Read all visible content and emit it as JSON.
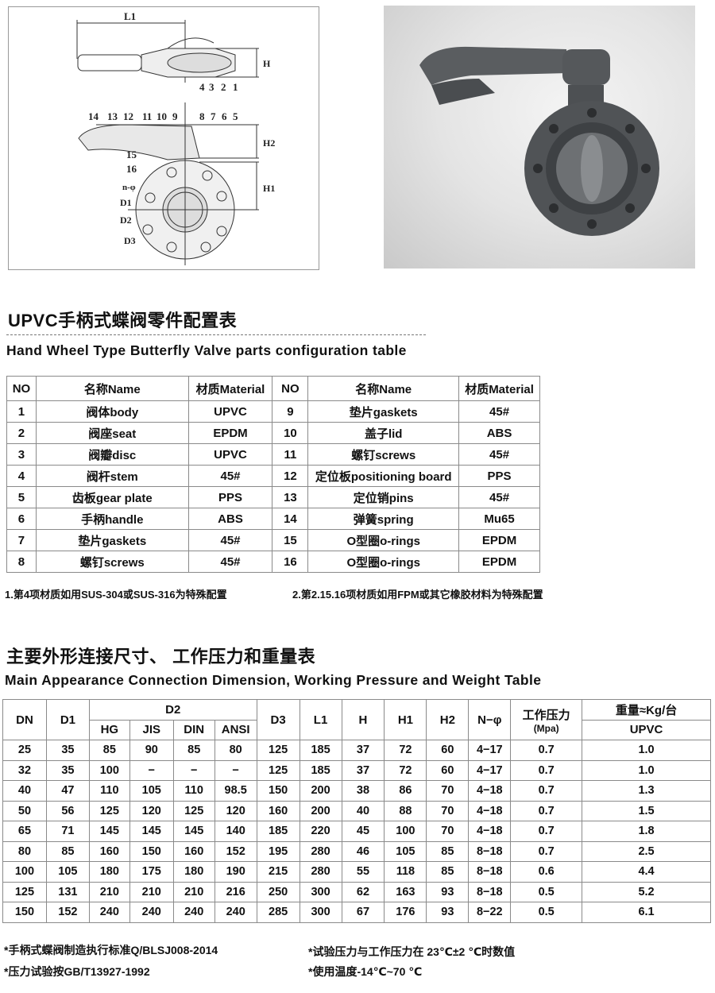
{
  "drawing": {
    "labels": [
      "L1",
      "H",
      "H2",
      "H1",
      "D1",
      "D2",
      "D3",
      "n-φ"
    ],
    "part_numbers_top": [
      "4",
      "3",
      "2",
      "1"
    ],
    "part_numbers_bottom": [
      "14",
      "13",
      "12",
      "11",
      "10",
      "9",
      "8",
      "7",
      "6",
      "5",
      "15",
      "16"
    ]
  },
  "parts_section": {
    "title_cn": "UPVC手柄式蝶阀零件配置表",
    "title_en": "Hand Wheel Type Butterfly Valve parts configuration table",
    "headers": [
      "NO",
      "名称Name",
      "材质Material",
      "NO",
      "名称Name",
      "材质Material"
    ],
    "rows": [
      [
        "1",
        "阀体body",
        "UPVC",
        "9",
        "垫片gaskets",
        "45#"
      ],
      [
        "2",
        "阀座seat",
        "EPDM",
        "10",
        "盖子lid",
        "ABS"
      ],
      [
        "3",
        "阀瓣disc",
        "UPVC",
        "11",
        "螺钉screws",
        "45#"
      ],
      [
        "4",
        "阀杆stem",
        "45#",
        "12",
        "定位板positioning board",
        "PPS"
      ],
      [
        "5",
        "齿板gear plate",
        "PPS",
        "13",
        "定位销pins",
        "45#"
      ],
      [
        "6",
        "手柄handle",
        "ABS",
        "14",
        "弹簧spring",
        "Mu65"
      ],
      [
        "7",
        "垫片gaskets",
        "45#",
        "15",
        "O型圈o-rings",
        "EPDM"
      ],
      [
        "8",
        "螺钉screws",
        "45#",
        "16",
        "O型圈o-rings",
        "EPDM"
      ]
    ],
    "note1": "1.第4项材质如用SUS-304或SUS-316为特殊配置",
    "note2": "2.第2.15.16项材质如用FPM或其它橡胶材料为特殊配置"
  },
  "dims_section": {
    "title_cn": "主要外形连接尺寸、 工作压力和重量表",
    "title_en": "Main Appearance Connection Dimension, Working Pressure and Weight Table",
    "headers": {
      "DN": "DN",
      "D1": "D1",
      "D2": "D2",
      "HG": "HG",
      "JIS": "JIS",
      "DIN": "DIN",
      "ANSI": "ANSI",
      "D3": "D3",
      "L1": "L1",
      "H": "H",
      "H1": "H1",
      "H2": "H2",
      "N": "N−φ",
      "pressure": "工作压力",
      "pressure_unit": "(Mpa)",
      "weight": "重量≈Kg/台",
      "UPVC": "UPVC"
    },
    "rows": [
      [
        "25",
        "35",
        "85",
        "90",
        "85",
        "80",
        "125",
        "185",
        "37",
        "72",
        "60",
        "4−17",
        "0.7",
        "1.0"
      ],
      [
        "32",
        "35",
        "100",
        "−",
        "−",
        "−",
        "125",
        "185",
        "37",
        "72",
        "60",
        "4−17",
        "0.7",
        "1.0"
      ],
      [
        "40",
        "47",
        "110",
        "105",
        "110",
        "98.5",
        "150",
        "200",
        "38",
        "86",
        "70",
        "4−18",
        "0.7",
        "1.3"
      ],
      [
        "50",
        "56",
        "125",
        "120",
        "125",
        "120",
        "160",
        "200",
        "40",
        "88",
        "70",
        "4−18",
        "0.7",
        "1.5"
      ],
      [
        "65",
        "71",
        "145",
        "145",
        "145",
        "140",
        "185",
        "220",
        "45",
        "100",
        "70",
        "4−18",
        "0.7",
        "1.8"
      ],
      [
        "80",
        "85",
        "160",
        "150",
        "160",
        "152",
        "195",
        "280",
        "46",
        "105",
        "85",
        "8−18",
        "0.7",
        "2.5"
      ],
      [
        "100",
        "105",
        "180",
        "175",
        "180",
        "190",
        "215",
        "280",
        "55",
        "118",
        "85",
        "8−18",
        "0.6",
        "4.4"
      ],
      [
        "125",
        "131",
        "210",
        "210",
        "210",
        "216",
        "250",
        "300",
        "62",
        "163",
        "93",
        "8−18",
        "0.5",
        "5.2"
      ],
      [
        "150",
        "152",
        "240",
        "240",
        "240",
        "240",
        "285",
        "300",
        "67",
        "176",
        "93",
        "8−22",
        "0.5",
        "6.1"
      ]
    ],
    "footnotes": [
      "*手柄式蝶阀制造执行标准Q/BLSJ008-2014",
      "*试验压力与工作压力在 23℃±2 ℃时数值",
      "*压力试验按GB/T13927-1992",
      "*使用温度-14℃~70 ℃"
    ]
  }
}
